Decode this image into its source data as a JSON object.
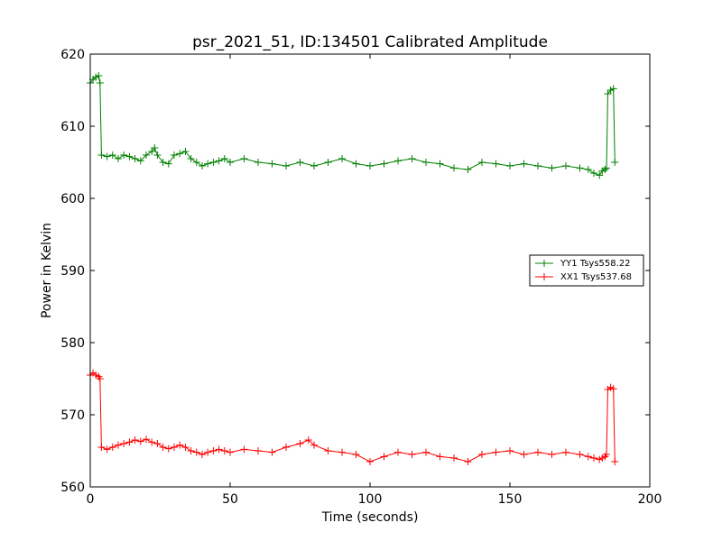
{
  "chart_data": {
    "type": "line",
    "title": "psr_2021_51, ID:134501 Calibrated Amplitude",
    "xlabel": "Time (seconds)",
    "ylabel": "Power in Kelvin",
    "xlim": [
      0,
      200
    ],
    "ylim": [
      560,
      620
    ],
    "xticks": [
      0,
      50,
      100,
      150,
      200
    ],
    "yticks": [
      560,
      570,
      580,
      590,
      600,
      610,
      620
    ],
    "grid": false,
    "legend_position": "center-right",
    "marker": "plus",
    "series": [
      {
        "name": "YY1 Tsys558.22",
        "color": "#008000",
        "x": [
          0,
          1,
          2,
          3,
          3.5,
          4,
          6,
          8,
          10,
          12,
          14,
          16,
          18,
          20,
          22,
          23,
          24,
          26,
          28,
          30,
          32,
          34,
          36,
          38,
          40,
          42,
          44,
          46,
          48,
          50,
          55,
          60,
          65,
          70,
          75,
          80,
          85,
          90,
          95,
          100,
          105,
          110,
          115,
          120,
          125,
          130,
          135,
          140,
          145,
          150,
          155,
          160,
          165,
          170,
          175,
          178,
          180,
          182,
          183,
          184,
          184.5,
          185,
          186,
          187,
          187.5
        ],
        "y": [
          616,
          616.5,
          616.8,
          617,
          616,
          606,
          605.8,
          606,
          605.5,
          606,
          605.8,
          605.5,
          605.2,
          606,
          606.5,
          607,
          606,
          605,
          604.8,
          606,
          606.2,
          606.5,
          605.5,
          605,
          604.5,
          604.8,
          605,
          605.2,
          605.5,
          605,
          605.5,
          605,
          604.8,
          604.5,
          605,
          604.5,
          605,
          605.5,
          604.8,
          604.5,
          604.8,
          605.2,
          605.5,
          605,
          604.8,
          604.2,
          604,
          605,
          604.8,
          604.5,
          604.8,
          604.5,
          604.2,
          604.5,
          604.2,
          604,
          603.5,
          603.2,
          603.8,
          604,
          604.2,
          614.5,
          615,
          615.2,
          605
        ]
      },
      {
        "name": "XX1 Tsys537.68",
        "color": "#ff0000",
        "x": [
          0,
          1,
          2,
          3,
          3.5,
          4,
          6,
          8,
          10,
          12,
          14,
          16,
          18,
          20,
          22,
          24,
          26,
          28,
          30,
          32,
          34,
          36,
          38,
          40,
          42,
          44,
          46,
          48,
          50,
          55,
          60,
          65,
          70,
          75,
          78,
          80,
          85,
          90,
          95,
          100,
          105,
          110,
          115,
          120,
          125,
          130,
          135,
          140,
          145,
          150,
          155,
          160,
          165,
          170,
          175,
          178,
          180,
          182,
          183,
          184,
          184.5,
          185,
          186,
          187,
          187.5
        ],
        "y": [
          575.5,
          575.8,
          575.5,
          575.3,
          575,
          565.5,
          565.2,
          565.5,
          565.8,
          566,
          566.2,
          566.5,
          566.3,
          566.6,
          566.2,
          566,
          565.5,
          565.3,
          565.5,
          565.8,
          565.5,
          565,
          564.8,
          564.5,
          564.8,
          565,
          565.2,
          565,
          564.8,
          565.2,
          565,
          564.8,
          565.5,
          566,
          566.5,
          565.8,
          565,
          564.8,
          564.5,
          563.5,
          564.2,
          564.8,
          564.5,
          564.8,
          564.2,
          564,
          563.5,
          564.5,
          564.8,
          565,
          564.5,
          564.8,
          564.5,
          564.8,
          564.5,
          564.2,
          564,
          563.8,
          564,
          564.2,
          564.5,
          573.5,
          573.8,
          573.6,
          563.5
        ]
      }
    ]
  }
}
